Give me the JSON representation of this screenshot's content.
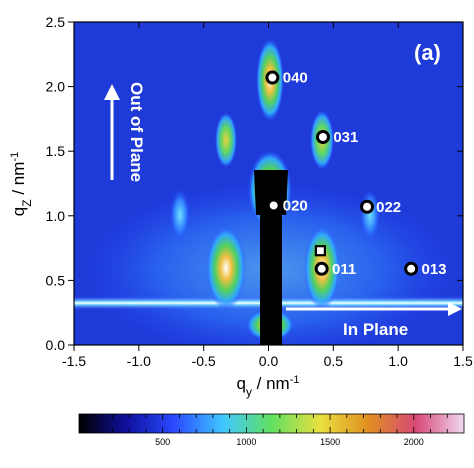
{
  "chart_data": {
    "type": "heatmap",
    "title": "",
    "panel_label": "(a)",
    "xlabel": "q",
    "xlabel_sub": "y",
    "xlabel_unit": " / nm",
    "xlabel_sup": "-1",
    "ylabel": "q",
    "ylabel_sub": "Z",
    "ylabel_unit": " / nm",
    "ylabel_sup": "-1",
    "xlim": [
      -1.5,
      1.5
    ],
    "ylim": [
      0.0,
      2.5
    ],
    "xticks": [
      -1.5,
      -1.0,
      -0.5,
      0.0,
      0.5,
      1.0,
      1.5
    ],
    "xtick_labels": [
      "-1.5",
      "-1.0",
      "-0.5",
      "0.0",
      "0.5",
      "1.0",
      "1.5"
    ],
    "yticks": [
      0.0,
      0.5,
      1.0,
      1.5,
      2.0,
      2.5
    ],
    "ytick_labels": [
      "0.0",
      "0.5",
      "1.0",
      "1.5",
      "2.0",
      "2.5"
    ],
    "direction_labels": {
      "out_of_plane": "Out of Plane",
      "in_plane": "In Plane"
    },
    "reflections": [
      {
        "label": "040",
        "qy": 0.03,
        "qz": 2.07,
        "marker": "circle",
        "label_dx": 0.08
      },
      {
        "label": "031",
        "qy": 0.42,
        "qz": 1.61,
        "marker": "circle",
        "label_dx": 0.08
      },
      {
        "label": "020",
        "qy": 0.04,
        "qz": 1.08,
        "marker": "circle",
        "label_dx": 0.07
      },
      {
        "label": "022",
        "qy": 0.76,
        "qz": 1.07,
        "marker": "circle",
        "label_dx": 0.07
      },
      {
        "label": "011",
        "qy": 0.41,
        "qz": 0.59,
        "marker": "circle",
        "label_dx": 0.08
      },
      {
        "label": "013",
        "qy": 1.1,
        "qz": 0.59,
        "marker": "circle",
        "label_dx": 0.08
      },
      {
        "label": "",
        "qy": 0.4,
        "qz": 0.73,
        "marker": "square",
        "label_dx": 0
      }
    ],
    "colorbar": {
      "ticks": [
        500,
        1000,
        1500,
        2000
      ],
      "tick_labels": [
        "500",
        "1000",
        "1500",
        "2000"
      ],
      "range": [
        0,
        2300
      ],
      "colors": [
        "#000000",
        "#1010a0",
        "#2a4cff",
        "#40c8ff",
        "#60e060",
        "#e8e040",
        "#e09020",
        "#d84878",
        "#f0d8f0"
      ]
    }
  }
}
